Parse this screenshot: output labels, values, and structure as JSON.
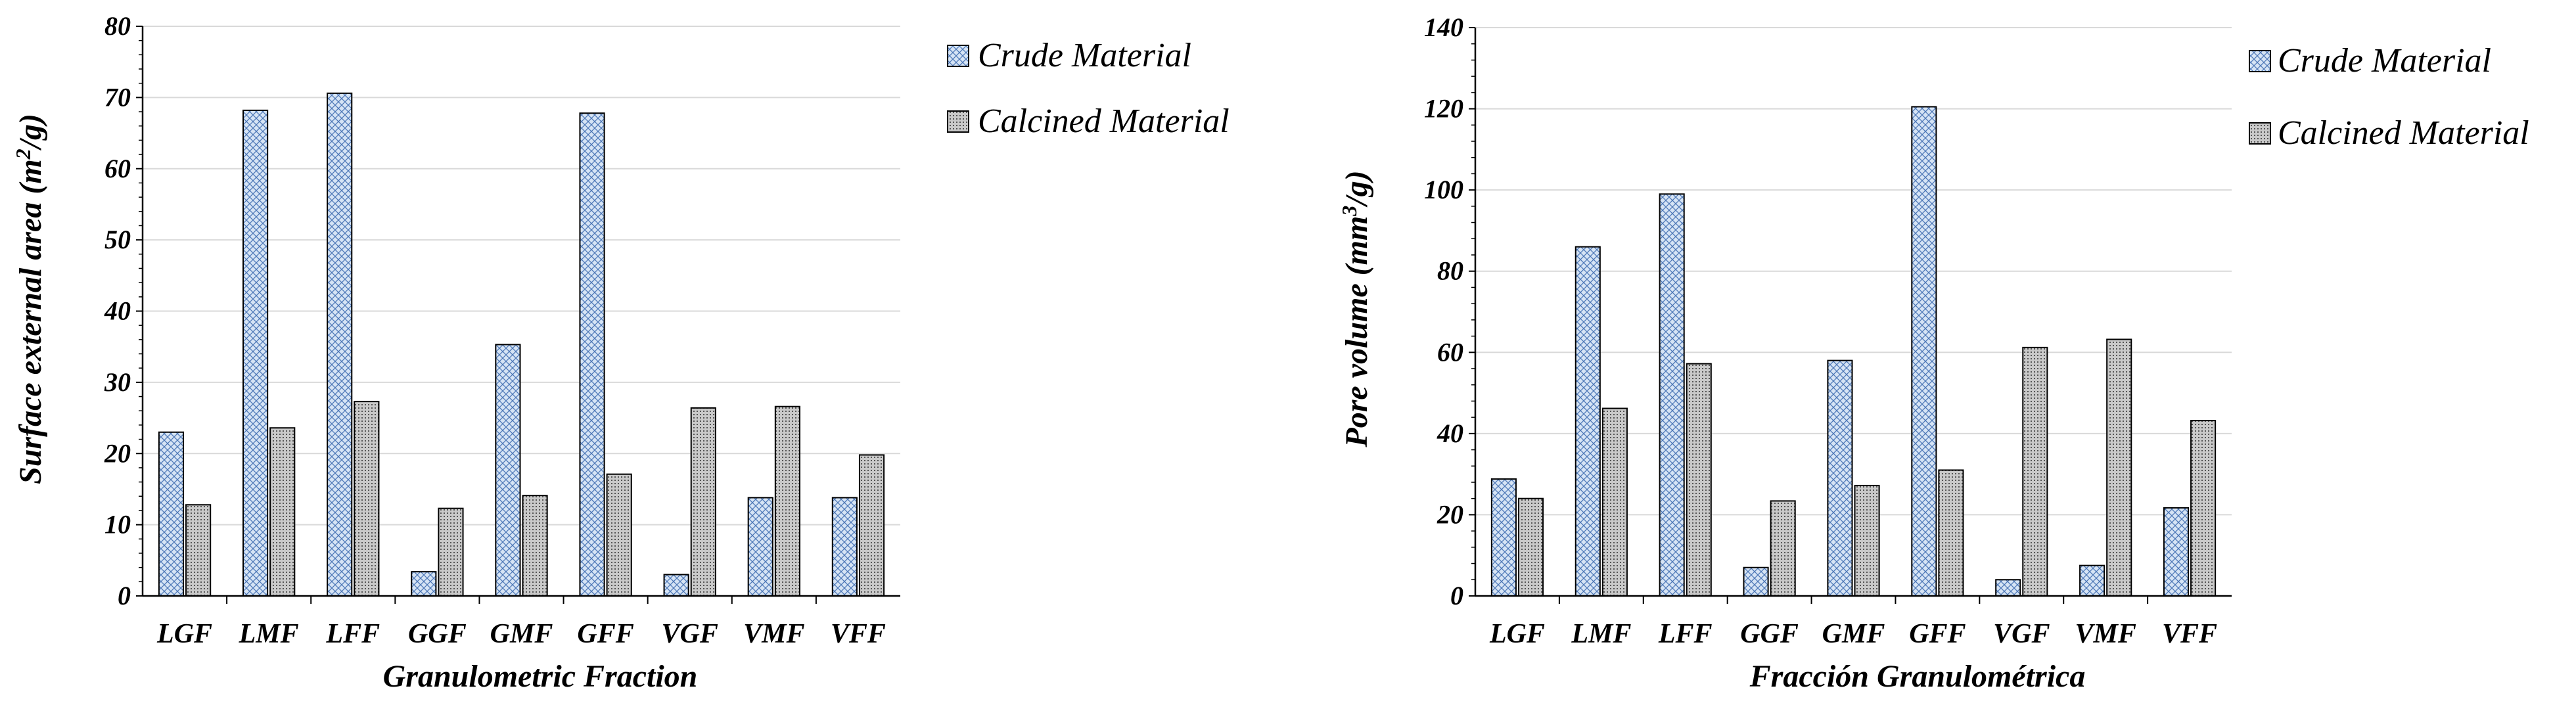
{
  "colors": {
    "crude_fill": "#d6e4f5",
    "crude_pattern": "#4f79b8",
    "calcined_fill": "#c9c9c9",
    "calcined_pattern": "#555555",
    "grid": "#d9d9d9",
    "axis": "#000000"
  },
  "chart_data": [
    {
      "type": "bar",
      "categories": [
        "LGF",
        "LMF",
        "LFF",
        "GGF",
        "GMF",
        "GFF",
        "VGF",
        "VMF",
        "VFF"
      ],
      "series": [
        {
          "name": "Crude Material",
          "values": [
            23,
            68.2,
            70.6,
            3.4,
            35.3,
            67.8,
            3,
            13.8,
            13.8
          ]
        },
        {
          "name": "Calcined Material",
          "values": [
            12.8,
            23.6,
            27.3,
            12.3,
            14.1,
            17.1,
            26.4,
            26.6,
            19.8
          ]
        }
      ],
      "title": "",
      "xlabel": "Granulometric Fraction",
      "ylabel_prefix": "Surface external area (m",
      "ylabel_sup": "2",
      "ylabel_suffix": "/g)",
      "ylim": [
        0,
        80
      ],
      "yticks": [
        "0",
        "10",
        "20",
        "30",
        "40",
        "50",
        "60",
        "70",
        "80"
      ],
      "grid": true,
      "legend": "right"
    },
    {
      "type": "bar",
      "categories": [
        "LGF",
        "LMF",
        "LFF",
        "GGF",
        "GMF",
        "GFF",
        "VGF",
        "VMF",
        "VFF"
      ],
      "series": [
        {
          "name": "Crude Material",
          "values": [
            28.8,
            86,
            99,
            7,
            58,
            120.5,
            4,
            7.5,
            21.7
          ]
        },
        {
          "name": "Calcined Material",
          "values": [
            24,
            46.2,
            57.2,
            23.4,
            27.2,
            31,
            61.2,
            63.2,
            43.2
          ]
        }
      ],
      "title": "",
      "xlabel": "Fracción Granulométrica",
      "ylabel_prefix": "Pore volume (mm",
      "ylabel_sup": "3",
      "ylabel_suffix": "/g)",
      "ylim": [
        0,
        140
      ],
      "yticks": [
        "0",
        "20",
        "40",
        "60",
        "80",
        "100",
        "120",
        "140"
      ],
      "grid": true,
      "legend": "top-right"
    }
  ]
}
